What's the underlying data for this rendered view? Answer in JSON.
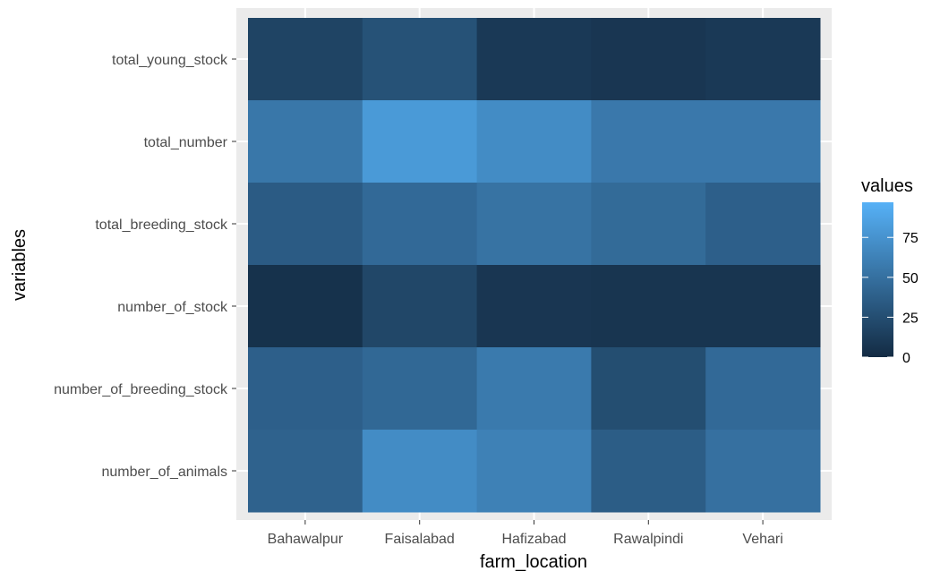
{
  "chart_data": {
    "type": "heatmap",
    "xlabel": "farm_location",
    "ylabel": "variables",
    "x_categories": [
      "Bahawalpur",
      "Faisalabad",
      "Hafizabad",
      "Rawalpindi",
      "Vehari"
    ],
    "y_categories": [
      "total_young_stock",
      "total_number",
      "total_breeding_stock",
      "number_of_stock",
      "number_of_breeding_stock",
      "number_of_animals"
    ],
    "values": [
      [
        18,
        28,
        10,
        8,
        10
      ],
      [
        55,
        80,
        70,
        56,
        56
      ],
      [
        35,
        45,
        52,
        46,
        38
      ],
      [
        5,
        20,
        8,
        7,
        7
      ],
      [
        38,
        44,
        57,
        25,
        45
      ],
      [
        40,
        70,
        62,
        36,
        50
      ]
    ],
    "legend": {
      "title": "values",
      "ticks": [
        0,
        25,
        50,
        75
      ],
      "range": [
        0,
        97
      ],
      "low_color": "#132B43",
      "high_color": "#56B1F7",
      "placement": "right"
    },
    "grid": true,
    "panel_background": "#EBEBEB",
    "grid_color": "#FFFFFF"
  }
}
